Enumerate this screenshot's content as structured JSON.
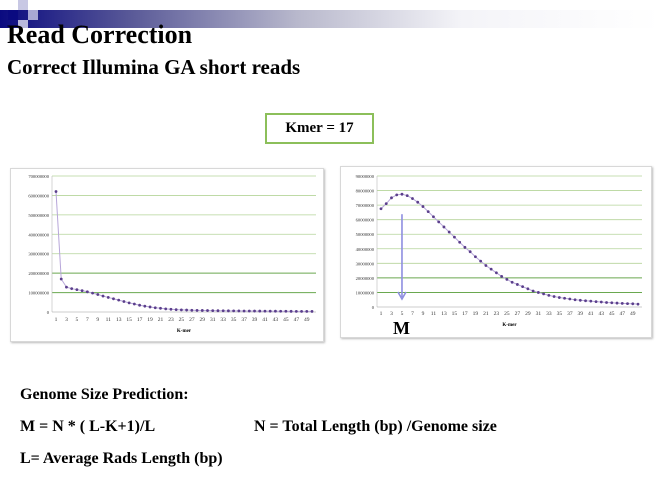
{
  "slide": {
    "title": "Read Correction",
    "subtitle": "Correct Illumina GA short reads",
    "kmer_box": "Kmer = 17",
    "marker_label": "M",
    "lines": [
      "Genome Size Prediction:",
      "M = N * ( L-K+1)/L",
      "N = Total Length (bp) /Genome size",
      "L= Average Rads Length (bp)"
    ],
    "colors": {
      "header_bar": "#0a0a80",
      "kmer_border": "#8cbf5a",
      "series": "#5b3f8c",
      "line": "#b7a6d9",
      "grid": "#b5d49a",
      "arrow": "#8e8ee0"
    }
  },
  "chart_data": [
    {
      "type": "line",
      "xlabel": "K-mer",
      "ylabel": "",
      "ylim": [
        0,
        700000000
      ],
      "yticks": [
        "0",
        "100000000",
        "200000000",
        "300000000",
        "400000000",
        "500000000",
        "600000000",
        "700000000"
      ],
      "xticks": [
        "1",
        "3",
        "5",
        "7",
        "9",
        "11",
        "13",
        "15",
        "17",
        "19",
        "21",
        "23",
        "25",
        "27",
        "29",
        "31",
        "33",
        "35",
        "37",
        "39",
        "41",
        "43",
        "45",
        "47",
        "49"
      ],
      "grid": true,
      "x": [
        1,
        2,
        3,
        4,
        5,
        6,
        7,
        8,
        9,
        10,
        11,
        12,
        13,
        14,
        15,
        16,
        17,
        18,
        19,
        20,
        21,
        22,
        23,
        24,
        25,
        26,
        27,
        28,
        29,
        30,
        31,
        32,
        33,
        34,
        35,
        36,
        37,
        38,
        39,
        40,
        41,
        42,
        43,
        44,
        45,
        46,
        47,
        48,
        49,
        50
      ],
      "values": [
        620000000,
        170000000,
        128000000,
        120000000,
        115000000,
        110000000,
        104000000,
        97000000,
        90000000,
        82000000,
        75000000,
        68000000,
        61000000,
        54000000,
        47000000,
        41000000,
        35000000,
        30000000,
        26000000,
        22000000,
        19000000,
        16000000,
        14000000,
        12000000,
        11000000,
        10000000,
        9000000,
        8500000,
        8000000,
        7500000,
        7000000,
        6700000,
        6400000,
        6100000,
        5800000,
        5500000,
        5300000,
        5100000,
        4900000,
        4700000,
        4500000,
        4300000,
        4100000,
        3900000,
        3700000,
        3500000,
        3400000,
        3300000,
        3200000,
        3000000
      ]
    },
    {
      "type": "line",
      "xlabel": "K-mer",
      "ylabel": "",
      "ylim": [
        0,
        90000000
      ],
      "yticks": [
        "0",
        "10000000",
        "20000000",
        "30000000",
        "40000000",
        "50000000",
        "60000000",
        "70000000",
        "80000000",
        "90000000"
      ],
      "xticks": [
        "1",
        "3",
        "5",
        "7",
        "9",
        "11",
        "13",
        "15",
        "17",
        "19",
        "21",
        "23",
        "25",
        "27",
        "29",
        "31",
        "33",
        "35",
        "37",
        "39",
        "41",
        "43",
        "45",
        "47",
        "49"
      ],
      "grid": true,
      "annotation": {
        "label": "M",
        "x": 5,
        "type": "down-arrow"
      },
      "x": [
        1,
        2,
        3,
        4,
        5,
        6,
        7,
        8,
        9,
        10,
        11,
        12,
        13,
        14,
        15,
        16,
        17,
        18,
        19,
        20,
        21,
        22,
        23,
        24,
        25,
        26,
        27,
        28,
        29,
        30,
        31,
        32,
        33,
        34,
        35,
        36,
        37,
        38,
        39,
        40,
        41,
        42,
        43,
        44,
        45,
        46,
        47,
        48,
        49,
        50
      ],
      "values": [
        67500000,
        71000000,
        75000000,
        77000000,
        77500000,
        76500000,
        74500000,
        72000000,
        69000000,
        65500000,
        62000000,
        58500000,
        55000000,
        51500000,
        48000000,
        44500000,
        41000000,
        38000000,
        34500000,
        31500000,
        28500000,
        26000000,
        23500000,
        21000000,
        19000000,
        17000000,
        15500000,
        14000000,
        12500000,
        11000000,
        10000000,
        9000000,
        8000000,
        7200000,
        6500000,
        6000000,
        5500000,
        5000000,
        4600000,
        4300000,
        4000000,
        3700000,
        3400000,
        3100000,
        2900000,
        2700000,
        2500000,
        2300000,
        2200000,
        2000000
      ]
    }
  ]
}
